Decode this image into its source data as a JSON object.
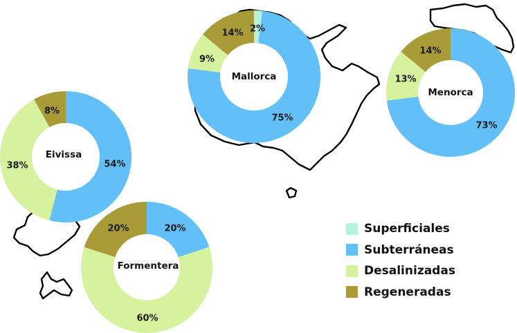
{
  "chart_data": {
    "type": "pie",
    "variant": "donut",
    "categories": [
      "Superficiales",
      "Subterráneas",
      "Desalinizadas",
      "Regeneradas"
    ],
    "colors": {
      "Superficiales": "#b7f2de",
      "Subterráneas": "#62bff8",
      "Desalinizadas": "#d7f29e",
      "Regeneradas": "#a89b38"
    },
    "legend_position": "bottom-right",
    "background_map": "Illes Balears",
    "charts": [
      {
        "title": "Mallorca",
        "values": [
          2,
          75,
          9,
          14
        ],
        "labels": [
          "2%",
          "75%",
          "9%",
          "14%"
        ]
      },
      {
        "title": "Menorca",
        "values": [
          0,
          73,
          13,
          14
        ],
        "labels": [
          "",
          "73%",
          "13%",
          "14%"
        ]
      },
      {
        "title": "Eivissa",
        "values": [
          0,
          54,
          38,
          8
        ],
        "labels": [
          "",
          "54%",
          "38%",
          "8%"
        ]
      },
      {
        "title": "Formentera",
        "values": [
          0,
          20,
          60,
          20
        ],
        "labels": [
          "",
          "20%",
          "60%",
          "20%"
        ]
      }
    ]
  }
}
